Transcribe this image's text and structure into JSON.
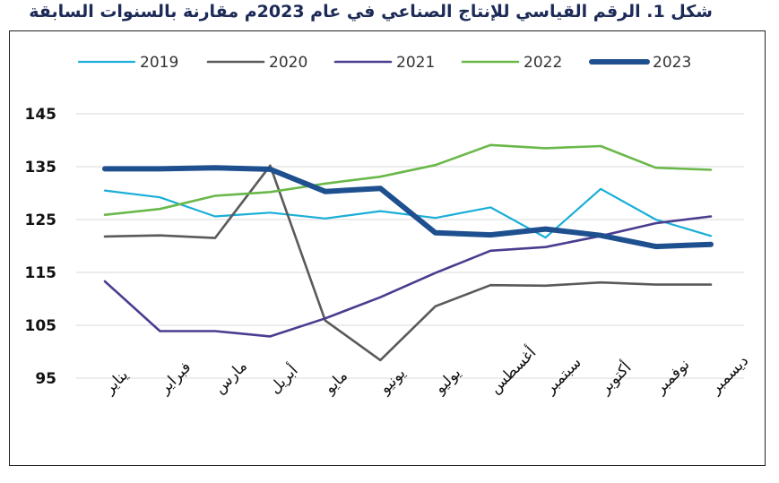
{
  "title": "شكل 1. الرقم القياسي للإنتاج الصناعي في عام 2023م مقارنة بالسنوات السابقة",
  "chart_data": {
    "type": "line",
    "categories": [
      "يناير",
      "فبراير",
      "مارس",
      "أبريل",
      "مايو",
      "يونيو",
      "يوليو",
      "أغسطس",
      "سبتمبر",
      "أكتوبر",
      "نوفمبر",
      "ديسمبر"
    ],
    "yticks": [
      95,
      105,
      115,
      125,
      135,
      145
    ],
    "ylim": [
      95,
      145
    ],
    "grid": true,
    "legend_position": "top",
    "series": [
      {
        "name": "2019",
        "color": "#1aaed8",
        "width": 2.2,
        "values": [
          130.5,
          129.2,
          125.6,
          126.3,
          125.2,
          126.6,
          125.3,
          127.3,
          121.6,
          130.8,
          125.0,
          121.9
        ]
      },
      {
        "name": "2020",
        "color": "#5a5a5a",
        "width": 2.6,
        "values": [
          121.8,
          122.0,
          121.5,
          135.2,
          105.9,
          98.4,
          108.6,
          112.6,
          112.5,
          113.1,
          112.7,
          112.7
        ]
      },
      {
        "name": "2021",
        "color": "#4a3d8f",
        "width": 2.6,
        "values": [
          113.3,
          103.9,
          103.9,
          102.9,
          106.3,
          110.3,
          114.9,
          119.1,
          119.8,
          121.9,
          124.3,
          125.6
        ]
      },
      {
        "name": "2022",
        "color": "#6ab84a",
        "width": 2.6,
        "values": [
          125.9,
          127.0,
          129.5,
          130.2,
          131.8,
          133.1,
          135.3,
          139.1,
          138.5,
          138.9,
          134.8,
          134.4
        ]
      },
      {
        "name": "2023",
        "color": "#1e4f8f",
        "width": 6,
        "values": [
          134.6,
          134.6,
          134.8,
          134.5,
          130.3,
          130.9,
          122.5,
          122.1,
          123.2,
          122.0,
          119.9,
          120.3
        ]
      }
    ]
  }
}
